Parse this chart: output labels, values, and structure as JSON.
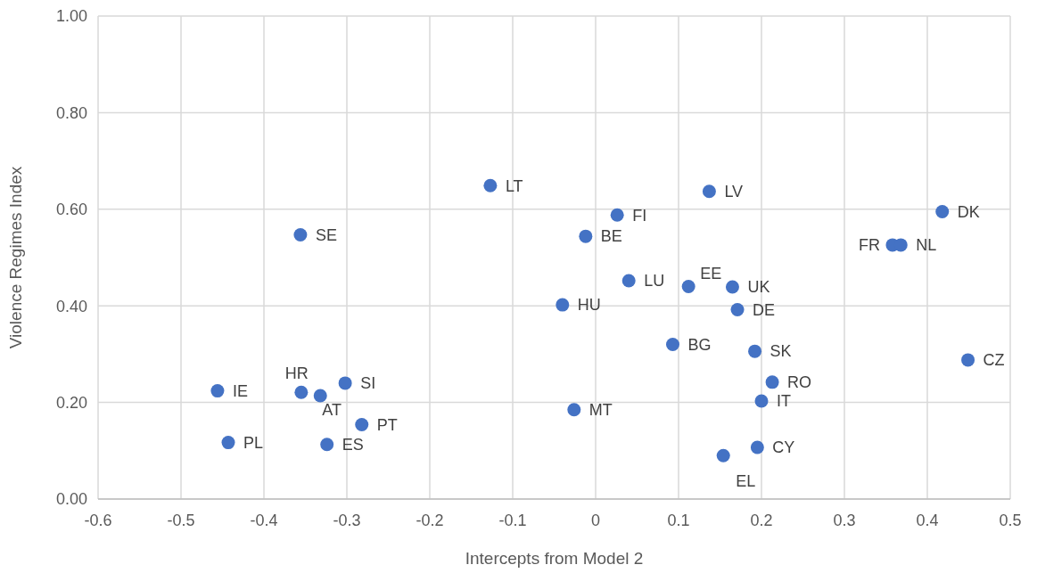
{
  "chart_data": {
    "type": "scatter",
    "xlabel": "Intercepts from Model 2",
    "ylabel": "Violence Regimes Index",
    "x": [
      -0.127,
      -0.356,
      -0.04,
      -0.456,
      -0.355,
      -0.332,
      -0.302,
      -0.282,
      -0.443,
      -0.324,
      -0.026,
      0.137,
      0.026,
      -0.012,
      0.418,
      0.358,
      0.368,
      0.04,
      0.112,
      0.165,
      0.171,
      0.093,
      0.192,
      0.449,
      0.213,
      0.2,
      0.195,
      0.154
    ],
    "series": [
      {
        "color": "#4472c4",
        "values": [
          0.649,
          0.547,
          0.402,
          0.224,
          0.221,
          0.214,
          0.24,
          0.154,
          0.117,
          0.113,
          0.185,
          0.637,
          0.588,
          0.544,
          0.595,
          0.526,
          0.526,
          0.452,
          0.44,
          0.439,
          0.392,
          0.32,
          0.306,
          0.288,
          0.242,
          0.203,
          0.107,
          0.09
        ]
      }
    ],
    "annotations": [
      {
        "text": "LT",
        "x": -0.127,
        "y": 0.649
      },
      {
        "text": "SE",
        "x": -0.356,
        "y": 0.547
      },
      {
        "text": "HU",
        "x": -0.04,
        "y": 0.402
      },
      {
        "text": "IE",
        "x": -0.456,
        "y": 0.224
      },
      {
        "text": "HR",
        "x": -0.355,
        "y": 0.221
      },
      {
        "text": "AT",
        "x": -0.332,
        "y": 0.214
      },
      {
        "text": "SI",
        "x": -0.302,
        "y": 0.24
      },
      {
        "text": "PT",
        "x": -0.282,
        "y": 0.154
      },
      {
        "text": "PL",
        "x": -0.443,
        "y": 0.117
      },
      {
        "text": "ES",
        "x": -0.324,
        "y": 0.113
      },
      {
        "text": "MT",
        "x": -0.026,
        "y": 0.185
      },
      {
        "text": "LV",
        "x": 0.137,
        "y": 0.637
      },
      {
        "text": "FI",
        "x": 0.026,
        "y": 0.588
      },
      {
        "text": "BE",
        "x": -0.012,
        "y": 0.544
      },
      {
        "text": "DK",
        "x": 0.418,
        "y": 0.595
      },
      {
        "text": "FR",
        "x": 0.358,
        "y": 0.526
      },
      {
        "text": "NL",
        "x": 0.368,
        "y": 0.526
      },
      {
        "text": "LU",
        "x": 0.04,
        "y": 0.452
      },
      {
        "text": "EE",
        "x": 0.112,
        "y": 0.44
      },
      {
        "text": "UK",
        "x": 0.165,
        "y": 0.439
      },
      {
        "text": "DE",
        "x": 0.171,
        "y": 0.392
      },
      {
        "text": "BG",
        "x": 0.093,
        "y": 0.32
      },
      {
        "text": "SK",
        "x": 0.192,
        "y": 0.306
      },
      {
        "text": "CZ",
        "x": 0.449,
        "y": 0.288
      },
      {
        "text": "RO",
        "x": 0.213,
        "y": 0.242
      },
      {
        "text": "IT",
        "x": 0.2,
        "y": 0.203
      },
      {
        "text": "CY",
        "x": 0.195,
        "y": 0.107
      },
      {
        "text": "EL",
        "x": 0.154,
        "y": 0.09
      }
    ],
    "xlim": [
      -0.6,
      0.5
    ],
    "xticks": [
      -0.6,
      -0.5,
      -0.4,
      -0.3,
      -0.2,
      -0.1,
      0,
      0.1,
      0.2,
      0.3,
      0.4,
      0.5
    ],
    "ylim": [
      0,
      1
    ],
    "yticks": [
      {
        "value": 0,
        "label": "0.00"
      },
      {
        "value": 0.2,
        "label": "0.20"
      },
      {
        "value": 0.4,
        "label": "0.40"
      },
      {
        "value": 0.6,
        "label": "0.60"
      },
      {
        "value": 0.8,
        "label": "0.80"
      },
      {
        "value": 1,
        "label": "1.00"
      }
    ],
    "grid": true,
    "marker": "circle"
  }
}
